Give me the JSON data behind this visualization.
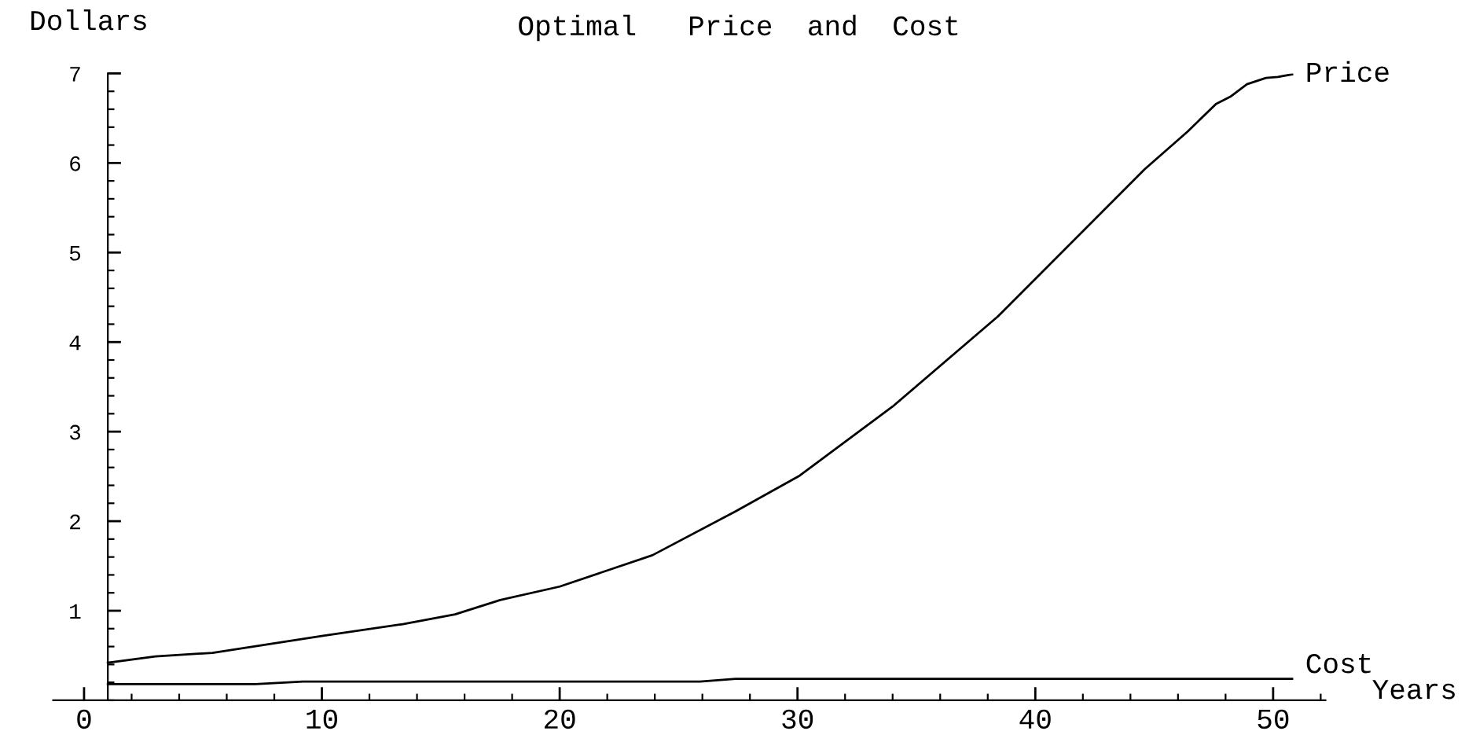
{
  "chart_data": {
    "type": "line",
    "title": "Optimal   Price  and  Cost",
    "xlabel": "Years",
    "ylabel": "Dollars",
    "xlim": [
      -1.3,
      52.2
    ],
    "ylim": [
      0,
      7
    ],
    "xticks": [
      0,
      10,
      20,
      30,
      40,
      50
    ],
    "yticks": [
      1,
      2,
      3,
      4,
      5,
      6,
      7
    ],
    "grid": false,
    "legend": false,
    "marker": "none",
    "line_style": "solid",
    "series": [
      {
        "name": "Price",
        "color": "#000000",
        "x": [
          1,
          3.0,
          5.4,
          10.05,
          13.4,
          15.6,
          17.5,
          20.0,
          23.9,
          27.4,
          30.1,
          34.0,
          38.4,
          44.6,
          46.4,
          47.6,
          48.2,
          48.9,
          49.7,
          50.2,
          50.8
        ],
        "values": [
          0.42,
          0.49,
          0.53,
          0.72,
          0.85,
          0.96,
          1.12,
          1.27,
          1.62,
          2.11,
          2.51,
          3.28,
          4.28,
          5.93,
          6.35,
          6.66,
          6.74,
          6.88,
          6.95,
          6.96,
          6.99
        ]
      },
      {
        "name": "Cost",
        "color": "#000000",
        "x": [
          1,
          7.2,
          9.2,
          25.9,
          27.4,
          50.8
        ],
        "values": [
          0.18,
          0.18,
          0.21,
          0.21,
          0.24,
          0.24
        ]
      }
    ]
  }
}
